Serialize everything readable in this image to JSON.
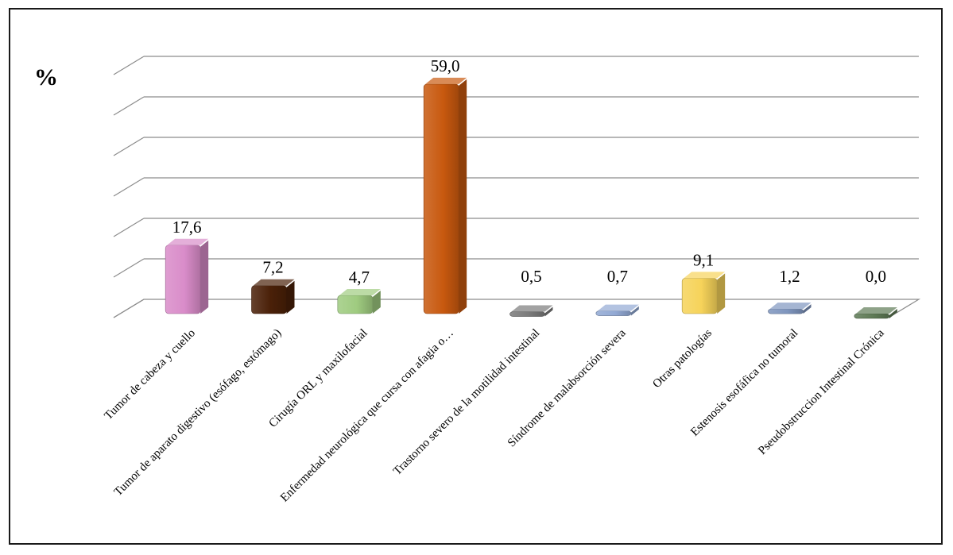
{
  "chart_data": {
    "type": "bar",
    "title": "",
    "ylabel": "%",
    "xlabel": "",
    "ylim": [
      0,
      60
    ],
    "grid": true,
    "categories": [
      "Tumor de cabeza y cuello",
      "Tumor de aparato digestivo (esófago, estómago)",
      "Cirugía ORL y maxilofacial",
      "Enfermedad neurológica que cursa con afagia o…",
      "Trastorno severo de la motilidad intestinal",
      "Síndrome de malabsorción severa",
      "Otras patologías",
      "Estenosis esofáfica no tumoral",
      "Pseudobstruccion Intestinal Crónica"
    ],
    "values": [
      17.6,
      7.2,
      4.7,
      59.0,
      0.5,
      0.7,
      9.1,
      1.2,
      0.0
    ],
    "value_labels": [
      "17,6",
      "7,2",
      "4,7",
      "59,0",
      "0,5",
      "0,7",
      "9,1",
      "1,2",
      "0,0"
    ],
    "colors": [
      "#D98CC9",
      "#4A2008",
      "#9FCB80",
      "#C8590F",
      "#7A7A7A",
      "#92A9D4",
      "#F6D35A",
      "#7E95BE",
      "#5E7A55"
    ]
  }
}
